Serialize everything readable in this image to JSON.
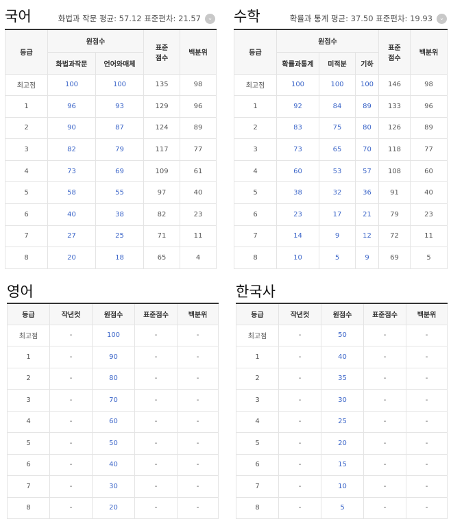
{
  "korean": {
    "title": "국어",
    "stat_label": "화법과 작문",
    "stat": "평균: 57.12 표준편차: 21.57",
    "icon": "chevron-down-icon",
    "h_grade": "등급",
    "h_raw": "원점수",
    "h_sub": [
      "화법과작문",
      "언어와매체"
    ],
    "h_std": "표준\n점수",
    "h_pct": "백분위",
    "rows": [
      [
        "최고점",
        "100",
        "100",
        "135",
        "98"
      ],
      [
        "1",
        "96",
        "93",
        "129",
        "96"
      ],
      [
        "2",
        "90",
        "87",
        "124",
        "89"
      ],
      [
        "3",
        "82",
        "79",
        "117",
        "77"
      ],
      [
        "4",
        "73",
        "69",
        "109",
        "61"
      ],
      [
        "5",
        "58",
        "55",
        "97",
        "40"
      ],
      [
        "6",
        "40",
        "38",
        "82",
        "23"
      ],
      [
        "7",
        "27",
        "25",
        "71",
        "11"
      ],
      [
        "8",
        "20",
        "18",
        "65",
        "4"
      ]
    ]
  },
  "math": {
    "title": "수학",
    "stat_label": "확률과 통계",
    "stat": "평균: 37.50 표준편차: 19.93",
    "icon": "chevron-down-icon",
    "h_grade": "등급",
    "h_raw": "원점수",
    "h_sub": [
      "확률과통계",
      "미적분",
      "기하"
    ],
    "h_std": "표준\n점수",
    "h_pct": "백분위",
    "rows": [
      [
        "최고점",
        "100",
        "100",
        "100",
        "146",
        "98"
      ],
      [
        "1",
        "92",
        "84",
        "89",
        "133",
        "96"
      ],
      [
        "2",
        "83",
        "75",
        "80",
        "126",
        "89"
      ],
      [
        "3",
        "73",
        "65",
        "70",
        "118",
        "77"
      ],
      [
        "4",
        "60",
        "53",
        "57",
        "108",
        "60"
      ],
      [
        "5",
        "38",
        "32",
        "36",
        "91",
        "40"
      ],
      [
        "6",
        "23",
        "17",
        "21",
        "79",
        "23"
      ],
      [
        "7",
        "14",
        "9",
        "12",
        "72",
        "11"
      ],
      [
        "8",
        "10",
        "5",
        "9",
        "69",
        "5"
      ]
    ]
  },
  "english": {
    "title": "영어",
    "headers": [
      "등급",
      "작년컷",
      "원점수",
      "표준점수",
      "백분위"
    ],
    "rows": [
      [
        "최고점",
        "-",
        "100",
        "-",
        "-"
      ],
      [
        "1",
        "-",
        "90",
        "-",
        "-"
      ],
      [
        "2",
        "-",
        "80",
        "-",
        "-"
      ],
      [
        "3",
        "-",
        "70",
        "-",
        "-"
      ],
      [
        "4",
        "-",
        "60",
        "-",
        "-"
      ],
      [
        "5",
        "-",
        "50",
        "-",
        "-"
      ],
      [
        "6",
        "-",
        "40",
        "-",
        "-"
      ],
      [
        "7",
        "-",
        "30",
        "-",
        "-"
      ],
      [
        "8",
        "-",
        "20",
        "-",
        "-"
      ]
    ]
  },
  "history": {
    "title": "한국사",
    "headers": [
      "등급",
      "작년컷",
      "원점수",
      "표준점수",
      "백분위"
    ],
    "rows": [
      [
        "최고점",
        "-",
        "50",
        "-",
        "-"
      ],
      [
        "1",
        "-",
        "40",
        "-",
        "-"
      ],
      [
        "2",
        "-",
        "35",
        "-",
        "-"
      ],
      [
        "3",
        "-",
        "30",
        "-",
        "-"
      ],
      [
        "4",
        "-",
        "25",
        "-",
        "-"
      ],
      [
        "5",
        "-",
        "20",
        "-",
        "-"
      ],
      [
        "6",
        "-",
        "15",
        "-",
        "-"
      ],
      [
        "7",
        "-",
        "10",
        "-",
        "-"
      ],
      [
        "8",
        "-",
        "5",
        "-",
        "-"
      ]
    ]
  }
}
